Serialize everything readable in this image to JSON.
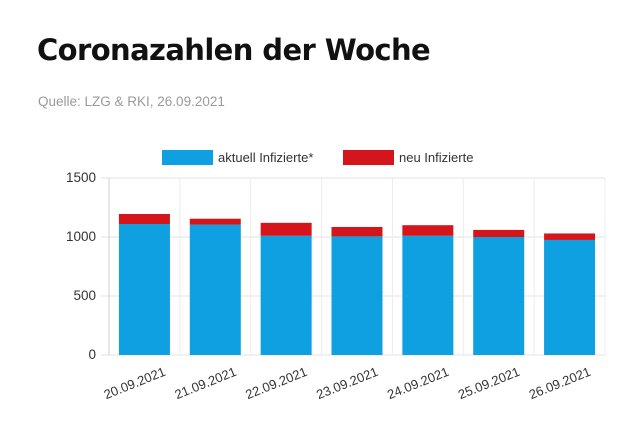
{
  "header": {
    "title": "Coronazahlen der Woche",
    "source": "Quelle: LZG & RKI, 26.09.2021"
  },
  "chart_data": {
    "type": "bar",
    "stacked": true,
    "categories": [
      "20.09.2021",
      "21.09.2021",
      "22.09.2021",
      "23.09.2021",
      "24.09.2021",
      "25.09.2021",
      "26.09.2021"
    ],
    "series": [
      {
        "name": "aktuell Infizierte*",
        "color": "#0ea0e0",
        "values": [
          1110,
          1105,
          1010,
          1005,
          1010,
          1000,
          975
        ]
      },
      {
        "name": "neu Infizierte",
        "color": "#d4161c",
        "values": [
          85,
          50,
          110,
          80,
          90,
          60,
          55
        ]
      }
    ],
    "ylim": [
      0,
      1500
    ],
    "yticks": [
      "1500",
      "1000",
      "500",
      "0"
    ],
    "grid": true,
    "legend": "top"
  }
}
